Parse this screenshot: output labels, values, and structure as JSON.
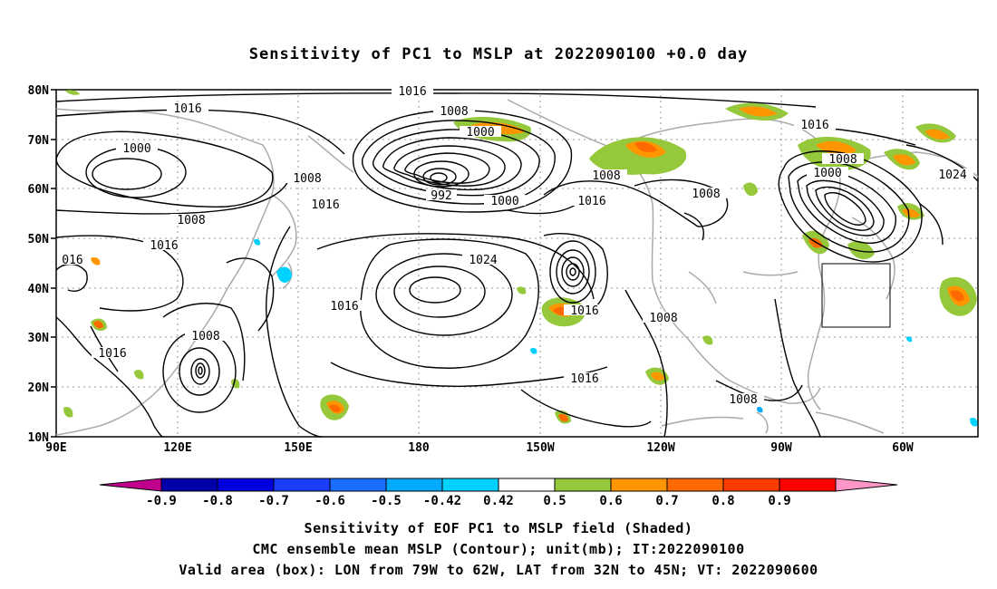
{
  "title": "Sensitivity of PC1 to MSLP at 2022090100 +0.0 day",
  "map": {
    "lat_labels": [
      "80N",
      "70N",
      "60N",
      "50N",
      "40N",
      "30N",
      "20N",
      "10N"
    ],
    "lon_labels": [
      "90E",
      "120E",
      "150E",
      "180",
      "150W",
      "120W",
      "90W",
      "60W"
    ],
    "grid": true,
    "valid_box": {
      "lon_from": "79W",
      "lon_to": "62W",
      "lat_from": "32N",
      "lat_to": "45N"
    },
    "contour_labels": [
      {
        "text": "1016",
        "name": "contour-label-1016-top"
      },
      {
        "text": "1016",
        "name": "contour-label-1016-nw"
      },
      {
        "text": "1000",
        "name": "contour-label-1000-siberia"
      },
      {
        "text": "1008",
        "name": "contour-label-1008-bering"
      },
      {
        "text": "1000",
        "name": "contour-label-1000-bering"
      },
      {
        "text": "992",
        "name": "contour-label-992"
      },
      {
        "text": "1000",
        "name": "contour-label-1000-gulf"
      },
      {
        "text": "1016",
        "name": "contour-label-1016-alaska"
      },
      {
        "text": "1008",
        "name": "contour-label-1008-alaska"
      },
      {
        "text": "1008",
        "name": "contour-label-1008-canada"
      },
      {
        "text": "1016",
        "name": "contour-label-1016-hudson"
      },
      {
        "text": "1008",
        "name": "contour-label-1008-labrador"
      },
      {
        "text": "1000",
        "name": "contour-label-1000-labrador"
      },
      {
        "text": "1024",
        "name": "contour-label-1024-atlantic"
      },
      {
        "text": "1008",
        "name": "contour-label-1008-kamchatka"
      },
      {
        "text": "1016",
        "name": "contour-label-1016-japan"
      },
      {
        "text": "1008",
        "name": "contour-label-1008-china"
      },
      {
        "text": "1016",
        "name": "contour-label-1016-china"
      },
      {
        "text": "016",
        "name": "contour-label-016-edge"
      },
      {
        "text": "1024",
        "name": "contour-label-1024-pacific-high"
      },
      {
        "text": "1016",
        "name": "contour-label-1016-pacific"
      },
      {
        "text": "1016",
        "name": "contour-label-1016-hawaii-low"
      },
      {
        "text": "1016",
        "name": "contour-label-1016-south-china"
      },
      {
        "text": "1008",
        "name": "contour-label-1008-typhoon"
      },
      {
        "text": "1008",
        "name": "contour-label-1008-california"
      },
      {
        "text": "1016",
        "name": "contour-label-1016-tropics"
      },
      {
        "text": "1008",
        "name": "contour-label-1008-mexico"
      }
    ]
  },
  "colorbar": {
    "labels": [
      "-0.9",
      "-0.8",
      "-0.7",
      "-0.6",
      "-0.5",
      "-0.42",
      "0.42",
      "0.5",
      "0.6",
      "0.7",
      "0.8",
      "0.9"
    ],
    "colors": [
      "#c0008c",
      "#0000aa",
      "#0000dd",
      "#1a3dff",
      "#1a6eff",
      "#00aaff",
      "#00d2ff",
      "#ffffff",
      "#96c83c",
      "#ff9600",
      "#ff6a00",
      "#ff3c00",
      "#ff0000",
      "#ff96c8"
    ]
  },
  "captions": {
    "line1": "Sensitivity of EOF PC1 to MSLP field (Shaded)",
    "line2": "CMC ensemble mean MSLP (Contour); unit(mb); IT:2022090100",
    "line3": "Valid area (box): LON from 79W to 62W, LAT from 32N to 45N; VT: 2022090600"
  }
}
